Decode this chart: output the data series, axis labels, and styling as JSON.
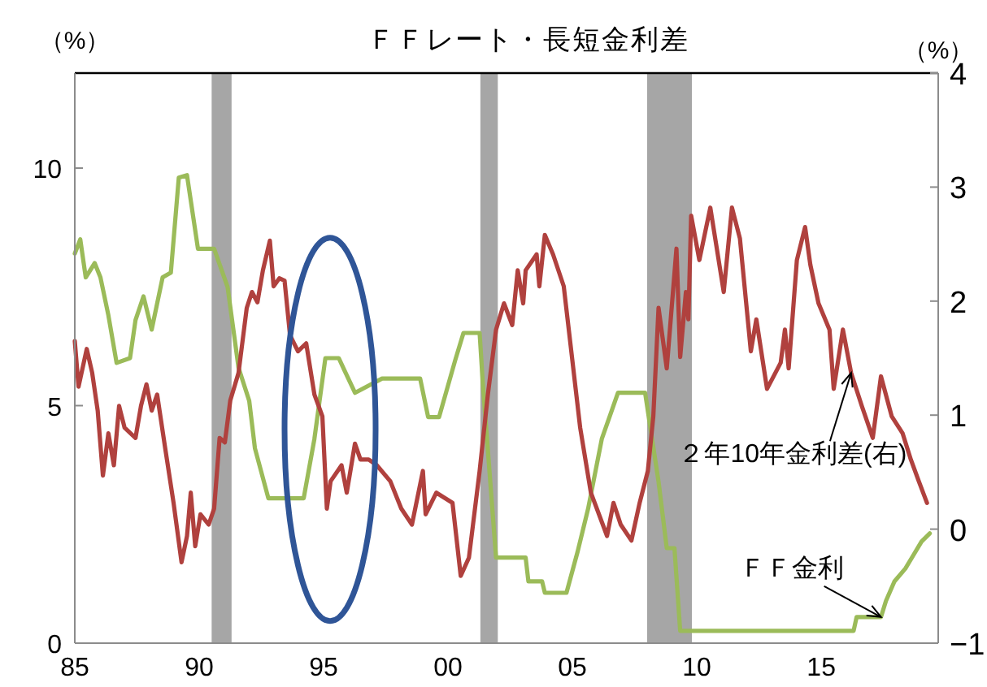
{
  "chart_data": {
    "type": "line",
    "title": "ＦＦレート・長短金利差",
    "ylabel": "（%）",
    "y2label": "（%）",
    "xlim": [
      1985,
      2019.7
    ],
    "xticks": [
      {
        "value": 1985,
        "label": "85"
      },
      {
        "value": 1990,
        "label": "90"
      },
      {
        "value": 1995,
        "label": "95"
      },
      {
        "value": 2000,
        "label": "00"
      },
      {
        "value": 2005,
        "label": "05"
      },
      {
        "value": 2010,
        "label": "10"
      },
      {
        "value": 2015,
        "label": "15"
      }
    ],
    "ylim": [
      0,
      12
    ],
    "yticks": [
      0,
      5,
      10
    ],
    "y2lim": [
      -1,
      4
    ],
    "y2ticks": [
      -1,
      0,
      1,
      2,
      3,
      4
    ],
    "bands": [
      {
        "axis": "x",
        "from": 1990.5,
        "to": 1991.3,
        "color": "#a6a6a6"
      },
      {
        "axis": "x",
        "from": 2001.3,
        "to": 2002.0,
        "color": "#a6a6a6"
      },
      {
        "axis": "x",
        "from": 2008.0,
        "to": 2009.8,
        "color": "#a6a6a6"
      }
    ],
    "series": [
      {
        "type": "line",
        "name": "ＦＦ金利",
        "color": "#9bbb59",
        "x": [
          1985.0,
          1985.22,
          1985.44,
          1985.8,
          1986.03,
          1986.35,
          1986.68,
          1987.22,
          1987.44,
          1987.76,
          1988.09,
          1988.53,
          1988.86,
          1989.18,
          1989.51,
          1989.95,
          1990.6,
          1991.14,
          1991.58,
          1992.01,
          1992.24,
          1992.78,
          1994.2,
          1994.63,
          1995.07,
          1995.61,
          1995.83,
          1996.26,
          1997.35,
          1998.88,
          1999.2,
          1999.64,
          2000.29,
          2000.62,
          2001.27,
          2001.4,
          2001.93,
          2003.12,
          2003.23,
          2003.78,
          2003.89,
          2004.76,
          2005.2,
          2005.63,
          2006.18,
          2006.83,
          2007.92,
          2008.46,
          2008.79,
          2009.1,
          2009.33,
          2016.3,
          2016.42,
          2017.4,
          2017.6,
          2017.94,
          2018.38,
          2018.7,
          2019.03,
          2019.36
        ],
        "values": [
          8.2,
          8.5,
          7.7,
          8.0,
          7.7,
          6.9,
          5.9,
          6.0,
          6.8,
          7.3,
          6.6,
          7.7,
          7.8,
          9.8,
          9.85,
          8.3,
          8.3,
          7.5,
          5.8,
          5.1,
          4.1,
          3.05,
          3.05,
          4.3,
          6.0,
          6.0,
          5.75,
          5.27,
          5.57,
          5.57,
          4.76,
          4.76,
          5.96,
          6.53,
          6.53,
          5.45,
          1.8,
          1.8,
          1.3,
          1.3,
          1.06,
          1.06,
          1.91,
          2.83,
          4.3,
          5.27,
          5.27,
          3.4,
          2.0,
          2.0,
          0.26,
          0.26,
          0.55,
          0.55,
          0.89,
          1.3,
          1.57,
          1.85,
          2.14,
          2.31
        ]
      },
      {
        "type": "line",
        "name": "２年10年金利差(右)",
        "color": "#b0413e",
        "axis": "y2",
        "x": [
          1985.0,
          1985.15,
          1985.48,
          1985.7,
          1985.92,
          1986.13,
          1986.35,
          1986.57,
          1986.78,
          1987.0,
          1987.44,
          1987.66,
          1987.88,
          1988.09,
          1988.31,
          1988.64,
          1988.97,
          1989.29,
          1989.51,
          1989.66,
          1989.84,
          1990.05,
          1990.38,
          1990.6,
          1990.82,
          1991.03,
          1991.25,
          1991.58,
          1991.91,
          1992.12,
          1992.34,
          1992.56,
          1992.84,
          1992.99,
          1993.22,
          1993.43,
          1993.65,
          1993.97,
          1994.3,
          1994.63,
          1994.95,
          1995.13,
          1995.28,
          1995.72,
          1995.93,
          1996.26,
          1996.48,
          1996.81,
          1997.14,
          1997.68,
          1998.12,
          1998.55,
          1998.99,
          1999.1,
          1999.53,
          2000.18,
          2000.51,
          2000.84,
          2001.27,
          2001.6,
          2001.93,
          2002.25,
          2002.58,
          2002.8,
          2003.02,
          2003.12,
          2003.56,
          2003.67,
          2003.89,
          2004.22,
          2004.65,
          2005.31,
          2005.74,
          2006.39,
          2006.65,
          2006.94,
          2007.37,
          2007.7,
          2008.03,
          2008.25,
          2008.46,
          2008.79,
          2009.18,
          2009.33,
          2009.56,
          2009.66,
          2009.77,
          2010.1,
          2010.54,
          2011.08,
          2011.41,
          2011.73,
          2012.17,
          2012.39,
          2012.82,
          2013.37,
          2013.54,
          2013.69,
          2014.02,
          2014.35,
          2014.56,
          2014.89,
          2015.33,
          2015.5,
          2015.87,
          2016.2,
          2016.63,
          2017.07,
          2017.4,
          2017.83,
          2018.27,
          2018.6,
          2018.92,
          2019.25
        ],
        "values": [
          1.65,
          1.25,
          1.58,
          1.37,
          1.04,
          0.47,
          0.84,
          0.56,
          1.08,
          0.89,
          0.8,
          1.08,
          1.27,
          1.04,
          1.18,
          0.7,
          0.23,
          -0.29,
          -0.06,
          0.32,
          -0.15,
          0.13,
          0.04,
          0.18,
          0.8,
          0.76,
          1.13,
          1.37,
          1.94,
          2.08,
          1.99,
          2.27,
          2.53,
          2.13,
          2.2,
          2.18,
          1.7,
          1.56,
          1.63,
          1.18,
          0.99,
          0.18,
          0.42,
          0.56,
          0.32,
          0.75,
          0.61,
          0.61,
          0.56,
          0.42,
          0.18,
          0.04,
          0.51,
          0.13,
          0.32,
          0.23,
          -0.41,
          -0.25,
          0.51,
          1.18,
          1.75,
          1.98,
          1.79,
          2.27,
          1.98,
          2.27,
          2.41,
          2.13,
          2.58,
          2.41,
          2.13,
          0.89,
          0.32,
          -0.06,
          0.23,
          0.04,
          -0.1,
          0.23,
          0.51,
          0.99,
          1.94,
          1.41,
          2.46,
          1.51,
          2.08,
          1.84,
          2.75,
          2.36,
          2.82,
          2.08,
          2.82,
          2.55,
          1.56,
          1.84,
          1.23,
          1.46,
          1.75,
          1.41,
          2.36,
          2.65,
          2.32,
          1.98,
          1.75,
          1.23,
          1.75,
          1.37,
          1.08,
          0.8,
          1.34,
          0.99,
          0.84,
          0.61,
          0.42,
          0.23
        ]
      }
    ]
  }
}
